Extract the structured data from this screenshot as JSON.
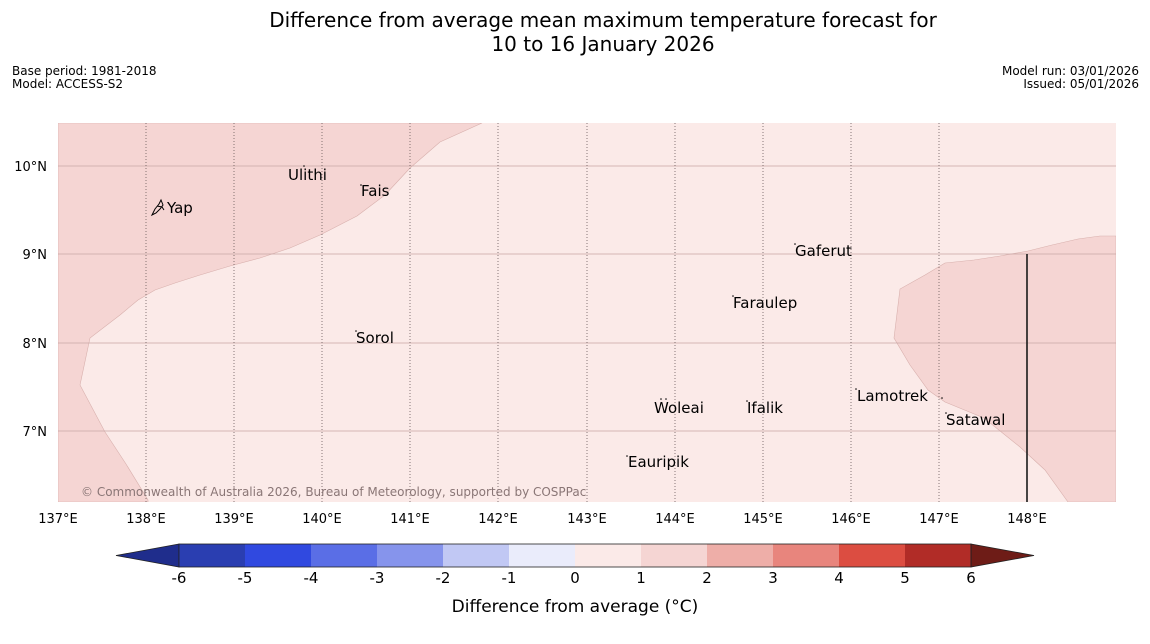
{
  "title": {
    "line1": "Difference from average mean maximum temperature forecast for",
    "line2": "10 to 16 January 2026"
  },
  "meta": {
    "base_period": "Base period: 1981-2018",
    "model": "Model: ACCESS-S2",
    "model_run": "Model run: 03/01/2026",
    "issued": "Issued: 05/01/2026"
  },
  "map": {
    "lon_labels": [
      "137°E",
      "138°E",
      "139°E",
      "140°E",
      "141°E",
      "142°E",
      "143°E",
      "144°E",
      "145°E",
      "146°E",
      "147°E",
      "148°E"
    ],
    "lat_labels": [
      "10°N",
      "9°N",
      "8°N",
      "7°N"
    ],
    "places": [
      "Yap",
      "Ulithi",
      "Fais",
      "Gaferut",
      "Faraulep",
      "Sorol",
      "Lamotrek",
      "Woleai",
      "Ifalik",
      "Satawal",
      "Eauripik"
    ],
    "copyright": "© Commonwealth of Australia 2026, Bureau of Meteorology, supported by COSPPac",
    "colors": {
      "region_0_to_1": "#fbeae8",
      "region_1_to_2": "#f5d5d3"
    }
  },
  "legend": {
    "title": "Difference from average (°C)",
    "ticks": [
      "-6",
      "-5",
      "-4",
      "-3",
      "-2",
      "-1",
      "0",
      "1",
      "2",
      "3",
      "4",
      "5",
      "6"
    ],
    "colors": [
      "#1f2d8c",
      "#2a3eb1",
      "#3049e0",
      "#5a6ee6",
      "#8694ec",
      "#c1c8f4",
      "#eaecfb",
      "#fbeae8",
      "#f5d5d3",
      "#eeaea8",
      "#e8857d",
      "#dc4d41",
      "#b12c27",
      "#6e1c17"
    ]
  }
}
